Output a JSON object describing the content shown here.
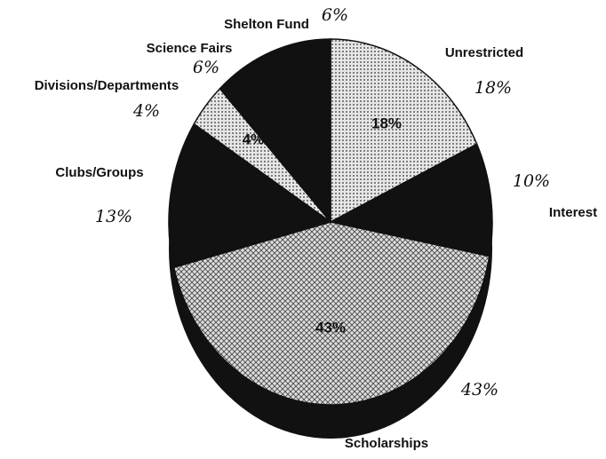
{
  "chart_data": {
    "type": "pie",
    "categories": [
      "Unrestricted",
      "Interest",
      "Scholarships",
      "Clubs/Groups",
      "Divisions/Departments",
      "Science Fairs",
      "Shelton Fund"
    ],
    "values": [
      18,
      10,
      43,
      13,
      4,
      6,
      6
    ],
    "value_labels": [
      "18%",
      "10%",
      "43%",
      "13%",
      "4%",
      "6%",
      "6%"
    ],
    "colors": [
      "#c8c8c8",
      "#111111",
      "#b0b0b0",
      "#111111",
      "#c0c0c0",
      "#111111",
      "#111111"
    ]
  }
}
